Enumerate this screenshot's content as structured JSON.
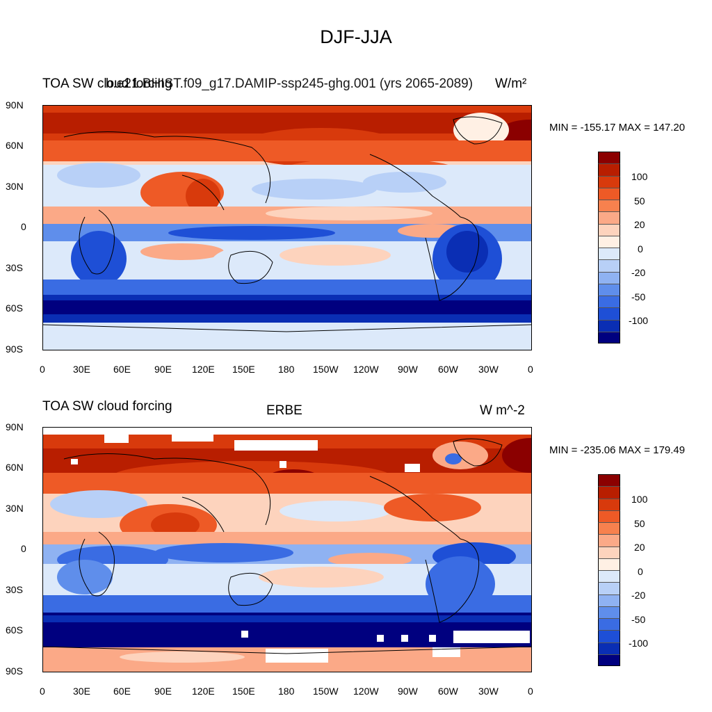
{
  "figure": {
    "title": "DJF-JJA"
  },
  "panels": [
    {
      "id": "top",
      "left_title": "TOA SW cloud forcing",
      "center_title": "b.e21.BHIST.f09_g17.DAMIP-ssp245-ghg.001 (yrs 2065-2089)",
      "right_title": "W/m²",
      "stats": "MIN = -155.17 MAX = 147.20"
    },
    {
      "id": "bottom",
      "left_title": "TOA SW cloud forcing",
      "center_title": "ERBE",
      "right_title": "W m^-2",
      "stats": "MIN = -235.06 MAX = 179.49"
    }
  ],
  "axes": {
    "lat_ticks": [
      "90N",
      "60N",
      "30N",
      "0",
      "30S",
      "60S",
      "90S"
    ],
    "lon_ticks": [
      "0",
      "30E",
      "60E",
      "90E",
      "120E",
      "150E",
      "180",
      "150W",
      "120W",
      "90W",
      "60W",
      "30W",
      "0"
    ]
  },
  "colorbar": {
    "labels": [
      "100",
      "50",
      "20",
      "0",
      "-20",
      "-50",
      "-100"
    ],
    "colors": [
      "#8b0000",
      "#b81e00",
      "#d83a0c",
      "#ee5a26",
      "#f7814e",
      "#fba987",
      "#fdd3bd",
      "#fff0e4",
      "#dce9fa",
      "#b8d0f7",
      "#8fb2f2",
      "#5f8eeb",
      "#3a6ce3",
      "#1e4fd6",
      "#0a2eb4",
      "#00007f"
    ]
  }
}
